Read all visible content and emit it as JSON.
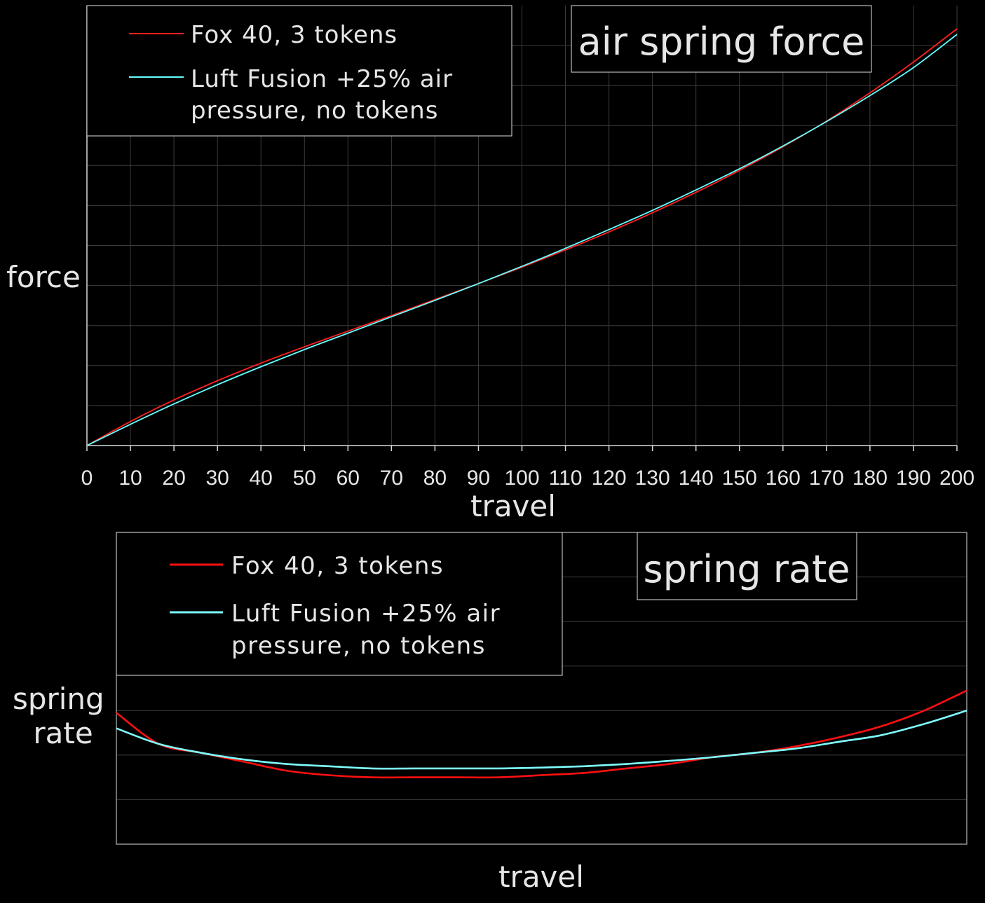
{
  "chart_data": [
    {
      "type": "line",
      "title": "air spring force",
      "xlabel": "travel",
      "ylabel": "force",
      "xlim": [
        0,
        200
      ],
      "ylim": [
        0,
        110
      ],
      "x_ticks": [
        "0",
        "10",
        "20",
        "30",
        "40",
        "50",
        "60",
        "70",
        "80",
        "90",
        "100",
        "110",
        "120",
        "130",
        "140",
        "150",
        "160",
        "170",
        "180",
        "190",
        "200"
      ],
      "legend_position": "top-left",
      "grid": true,
      "series": [
        {
          "name": "Fox 40, 3 tokens",
          "color": "#ff2020",
          "x": [
            0,
            10,
            20,
            30,
            40,
            50,
            60,
            70,
            80,
            90,
            100,
            110,
            120,
            130,
            140,
            150,
            160,
            170,
            180,
            190,
            200
          ],
          "values": [
            0,
            6.0,
            11.4,
            16.2,
            20.6,
            24.7,
            28.6,
            32.5,
            36.5,
            40.5,
            44.6,
            48.9,
            53.4,
            58.2,
            63.3,
            68.8,
            74.7,
            81.1,
            88.2,
            95.9,
            104.2
          ]
        },
        {
          "name": "Luft Fusion +25% air pressure, no tokens",
          "color": "#66ffff",
          "x": [
            0,
            10,
            20,
            30,
            40,
            50,
            60,
            70,
            80,
            90,
            100,
            110,
            120,
            130,
            140,
            150,
            160,
            170,
            180,
            190,
            200
          ],
          "values": [
            0,
            5.3,
            10.4,
            15.2,
            19.7,
            24.0,
            28.1,
            32.2,
            36.3,
            40.5,
            44.8,
            49.3,
            54.0,
            58.8,
            63.9,
            69.2,
            74.9,
            81.0,
            87.5,
            94.5,
            102.8
          ]
        }
      ]
    },
    {
      "type": "line",
      "title": "spring rate",
      "xlabel": "travel",
      "ylabel": "spring\nrate",
      "xlim": [
        0,
        200
      ],
      "ylim": [
        0,
        7
      ],
      "legend_position": "top-left",
      "grid": true,
      "series": [
        {
          "name": "Fox 40, 3 tokens",
          "color": "#ff1010",
          "x": [
            0,
            10,
            20,
            30,
            40,
            50,
            60,
            70,
            80,
            90,
            100,
            110,
            120,
            130,
            140,
            150,
            160,
            170,
            180,
            190,
            200
          ],
          "values": [
            2.95,
            2.25,
            2.05,
            1.85,
            1.65,
            1.55,
            1.5,
            1.5,
            1.5,
            1.5,
            1.55,
            1.6,
            1.7,
            1.8,
            1.95,
            2.05,
            2.2,
            2.4,
            2.65,
            3.0,
            3.45
          ]
        },
        {
          "name": "Luft Fusion +25% air pressure, no tokens",
          "color": "#7fffff",
          "x": [
            0,
            10,
            20,
            30,
            40,
            50,
            60,
            70,
            80,
            90,
            100,
            110,
            120,
            130,
            140,
            150,
            160,
            170,
            180,
            190,
            200
          ],
          "values": [
            2.6,
            2.25,
            2.05,
            1.9,
            1.8,
            1.75,
            1.7,
            1.7,
            1.7,
            1.7,
            1.72,
            1.75,
            1.8,
            1.87,
            1.95,
            2.05,
            2.15,
            2.3,
            2.45,
            2.7,
            3.0
          ]
        }
      ]
    }
  ]
}
